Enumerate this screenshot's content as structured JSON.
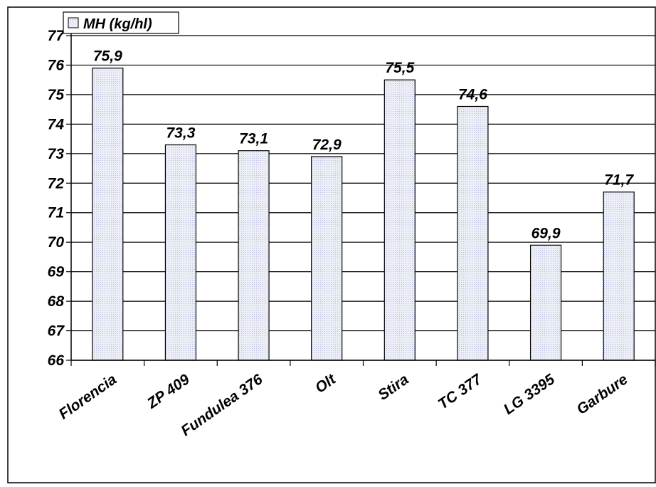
{
  "chart_data": {
    "type": "bar",
    "categories": [
      "Florencia",
      "ZP 409",
      "Fundulea 376",
      "Olt",
      "Stira",
      "TC 377",
      "LG 3395",
      "Garbure"
    ],
    "series": [
      {
        "name": "MH (kg/hl)",
        "values": [
          75.9,
          73.3,
          73.1,
          72.9,
          75.5,
          74.6,
          69.9,
          71.7
        ]
      }
    ],
    "data_labels": [
      "75,9",
      "73,3",
      "73,1",
      "72,9",
      "75,5",
      "74,6",
      "69,9",
      "71,7"
    ],
    "y_ticks": [
      "66",
      "67",
      "68",
      "69",
      "70",
      "71",
      "72",
      "73",
      "74",
      "75",
      "76",
      "77"
    ],
    "ylim": [
      66,
      77
    ],
    "grid": true,
    "legend": "top-left",
    "colors": {
      "bar_fill": "#e6e8f4",
      "bar_stroke": "#000000",
      "grid": "#000000",
      "background": "#ffffff"
    }
  }
}
